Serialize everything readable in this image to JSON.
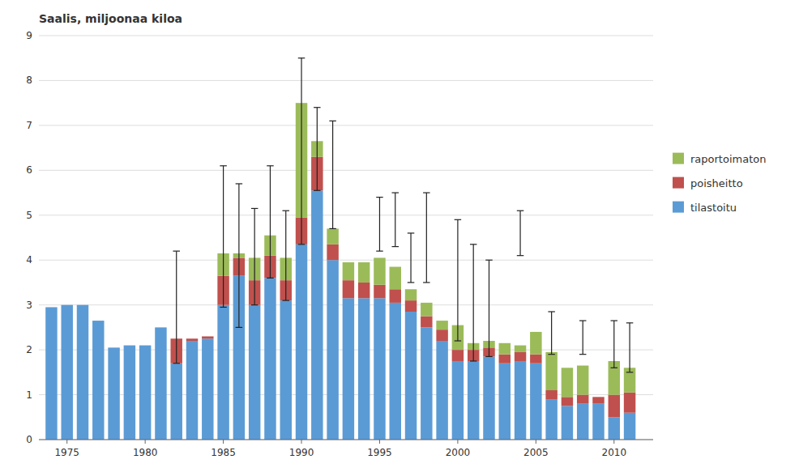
{
  "chart_data": {
    "type": "bar",
    "stacked": true,
    "title": "Saalis, miljoonaa kiloa",
    "x": [
      1974,
      1975,
      1976,
      1977,
      1978,
      1979,
      1980,
      1981,
      1982,
      1983,
      1984,
      1985,
      1986,
      1987,
      1988,
      1989,
      1990,
      1991,
      1992,
      1993,
      1994,
      1995,
      1996,
      1997,
      1998,
      1999,
      2000,
      2001,
      2002,
      2003,
      2004,
      2005,
      2006,
      2007,
      2008,
      2009,
      2010,
      2011
    ],
    "series": [
      {
        "name": "tilastoitu",
        "color": "#5B9BD5",
        "values": [
          2.95,
          3.0,
          3.0,
          2.65,
          2.05,
          2.1,
          2.1,
          2.5,
          1.7,
          2.2,
          2.25,
          3.0,
          3.65,
          3.0,
          3.6,
          3.1,
          4.35,
          5.55,
          4.0,
          3.15,
          3.15,
          3.15,
          3.05,
          2.85,
          2.5,
          2.2,
          1.75,
          1.75,
          1.85,
          1.7,
          1.75,
          1.7,
          0.9,
          0.75,
          0.8,
          0.8,
          0.5,
          0.6
        ]
      },
      {
        "name": "poisheitto",
        "color": "#C0504D",
        "values": [
          0.0,
          0.0,
          0.0,
          0.0,
          0.0,
          0.0,
          0.0,
          0.0,
          0.55,
          0.05,
          0.05,
          0.65,
          0.4,
          0.55,
          0.5,
          0.45,
          0.6,
          0.75,
          0.35,
          0.4,
          0.35,
          0.3,
          0.3,
          0.25,
          0.25,
          0.25,
          0.25,
          0.25,
          0.2,
          0.2,
          0.2,
          0.2,
          0.2,
          0.2,
          0.2,
          0.15,
          0.5,
          0.45
        ]
      },
      {
        "name": "raportoimaton",
        "color": "#9BBB59",
        "values": [
          0.0,
          0.0,
          0.0,
          0.0,
          0.0,
          0.0,
          0.0,
          0.0,
          0.0,
          0.0,
          0.0,
          0.5,
          0.1,
          0.5,
          0.45,
          0.5,
          2.55,
          0.35,
          0.35,
          0.4,
          0.45,
          0.6,
          0.5,
          0.25,
          0.3,
          0.2,
          0.55,
          0.15,
          0.15,
          0.25,
          0.15,
          0.5,
          0.85,
          0.65,
          0.65,
          0.0,
          0.75,
          0.55
        ]
      }
    ],
    "error_lower": [
      null,
      null,
      null,
      null,
      null,
      null,
      null,
      null,
      1.7,
      null,
      null,
      2.95,
      2.5,
      3.0,
      3.6,
      3.1,
      4.35,
      5.55,
      4.7,
      null,
      null,
      4.2,
      4.3,
      3.5,
      3.5,
      null,
      2.2,
      1.75,
      1.85,
      null,
      4.1,
      null,
      1.9,
      null,
      1.9,
      null,
      1.6,
      1.5
    ],
    "error_upper": [
      null,
      null,
      null,
      null,
      null,
      null,
      null,
      null,
      4.2,
      null,
      null,
      6.1,
      5.7,
      5.15,
      6.1,
      5.1,
      8.5,
      7.4,
      7.1,
      null,
      null,
      5.4,
      5.5,
      4.6,
      5.5,
      null,
      4.9,
      4.35,
      4.0,
      null,
      5.1,
      null,
      2.85,
      null,
      2.65,
      null,
      2.65,
      2.6
    ],
    "xlim": [
      1973.2,
      2012.5
    ],
    "xticks": [
      1975,
      1980,
      1985,
      1990,
      1995,
      2000,
      2005,
      2010
    ],
    "ylim": [
      0,
      9
    ],
    "yticks": [
      0,
      1,
      2,
      3,
      4,
      5,
      6,
      7,
      8,
      9
    ],
    "grid": true,
    "legend": "right"
  }
}
